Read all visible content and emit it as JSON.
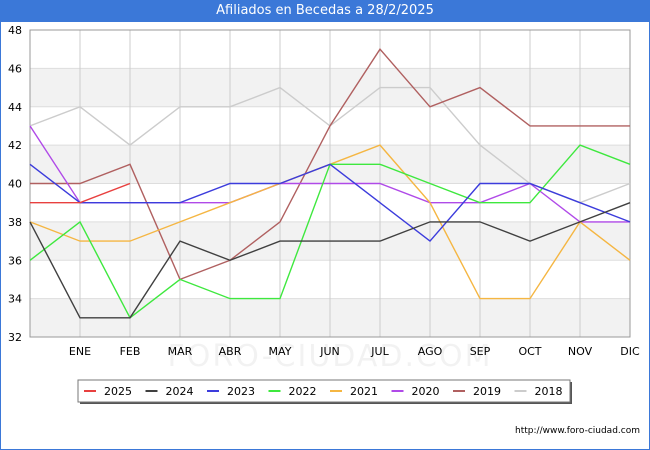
{
  "header": {
    "title": "Afiliados en Becedas a 28/2/2025"
  },
  "footer": {
    "url": "http://www.foro-ciudad.com"
  },
  "watermark": "FORO-CIUDAD.COM",
  "chart_data": {
    "type": "line",
    "title": "Afiliados en Becedas a 28/2/2025",
    "xlabel": "",
    "ylabel": "",
    "categories": [
      "",
      "ENE",
      "FEB",
      "MAR",
      "ABR",
      "MAY",
      "JUN",
      "JUL",
      "AGO",
      "SEP",
      "OCT",
      "NOV",
      "DIC"
    ],
    "ylim": [
      32,
      48
    ],
    "yticks": [
      32,
      34,
      36,
      38,
      40,
      42,
      44,
      46,
      48
    ],
    "grid": true,
    "legend_position": "bottom",
    "series": [
      {
        "name": "2025",
        "color": "#e8403f",
        "values": [
          39,
          39,
          40,
          null,
          null,
          null,
          null,
          null,
          null,
          null,
          null,
          null,
          null
        ]
      },
      {
        "name": "2024",
        "color": "#404040",
        "values": [
          38,
          33,
          33,
          37,
          36,
          37,
          37,
          37,
          38,
          38,
          37,
          38,
          39
        ]
      },
      {
        "name": "2023",
        "color": "#3c3cdc",
        "values": [
          41,
          39,
          39,
          39,
          40,
          40,
          41,
          39,
          37,
          40,
          40,
          39,
          38
        ]
      },
      {
        "name": "2022",
        "color": "#3ee83e",
        "values": [
          36,
          38,
          33,
          35,
          34,
          34,
          41,
          41,
          40,
          39,
          39,
          42,
          41
        ]
      },
      {
        "name": "2021",
        "color": "#f5b642",
        "values": [
          38,
          37,
          37,
          38,
          39,
          40,
          41,
          42,
          39,
          34,
          34,
          38,
          36
        ]
      },
      {
        "name": "2020",
        "color": "#b04ae8",
        "values": [
          43,
          39,
          39,
          39,
          39,
          40,
          40,
          40,
          39,
          39,
          40,
          38,
          38
        ]
      },
      {
        "name": "2019",
        "color": "#b06060",
        "values": [
          40,
          40,
          41,
          35,
          36,
          38,
          43,
          47,
          44,
          45,
          43,
          43,
          43
        ]
      },
      {
        "name": "2018",
        "color": "#cccccc",
        "values": [
          43,
          44,
          42,
          44,
          44,
          45,
          43,
          45,
          45,
          42,
          40,
          39,
          40
        ]
      }
    ]
  }
}
